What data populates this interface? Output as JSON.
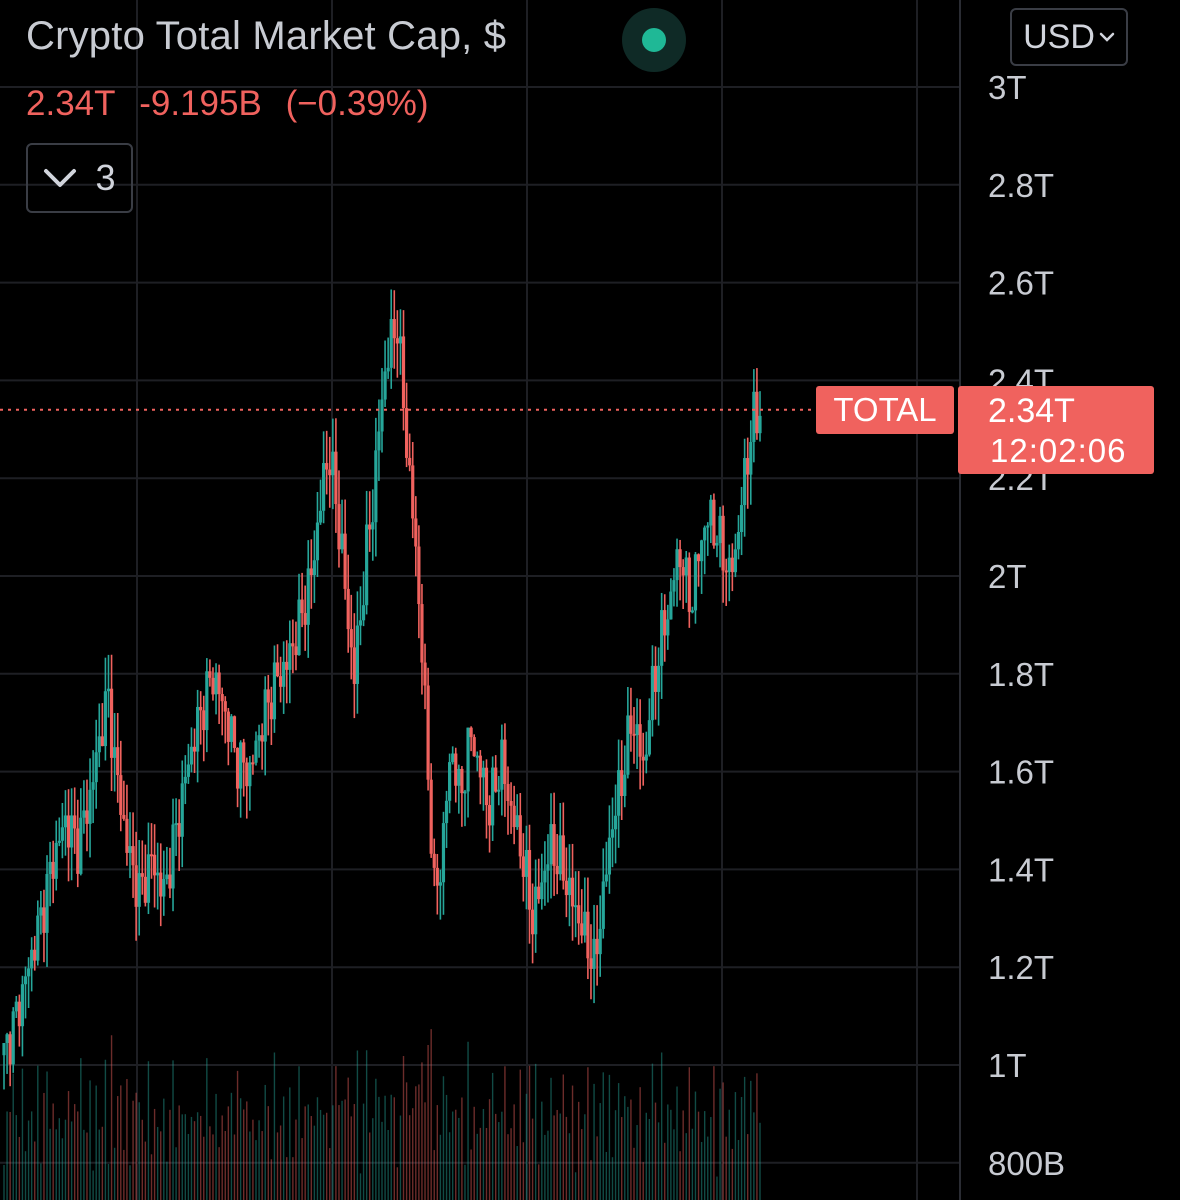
{
  "header": {
    "title": "Crypto Total Market Cap, $",
    "last_value": "2.34T",
    "change": "-9.195B",
    "change_pct": "(−0.39%)",
    "indicators_count": "3",
    "currency": "USD"
  },
  "price_tag": {
    "series_label": "TOTAL",
    "value": "2.34T",
    "countdown": "12:02:06"
  },
  "colors": {
    "up": "#26a69a",
    "down": "#f0625e",
    "grid": "#1e1f24",
    "axis_text": "#c8cbd2"
  },
  "icons": {
    "status": "status-dot-icon",
    "collapse": "chevron-down-icon",
    "currency_dropdown": "chevron-down-icon"
  },
  "chart_data": {
    "type": "candlestick",
    "series_name": "TOTAL",
    "y_scale": "linear",
    "ylim": [
      0.76,
      3.0
    ],
    "y_unit": "trillion USD",
    "y_ticks": [
      {
        "v": 3.0,
        "label": "3T"
      },
      {
        "v": 2.8,
        "label": "2.8T"
      },
      {
        "v": 2.6,
        "label": "2.6T"
      },
      {
        "v": 2.4,
        "label": "2.4T"
      },
      {
        "v": 2.2,
        "label": "2.2T"
      },
      {
        "v": 2.0,
        "label": "2T"
      },
      {
        "v": 1.8,
        "label": "1.8T"
      },
      {
        "v": 1.6,
        "label": "1.6T"
      },
      {
        "v": 1.4,
        "label": "1.4T"
      },
      {
        "v": 1.2,
        "label": "1.2T"
      },
      {
        "v": 1.0,
        "label": "1T"
      },
      {
        "v": 0.8,
        "label": "800B"
      }
    ],
    "last_price": 2.34,
    "grid": true,
    "price_path": [
      [
        0,
        1.02
      ],
      [
        4,
        1.1
      ],
      [
        8,
        1.2
      ],
      [
        12,
        1.3
      ],
      [
        16,
        1.42
      ],
      [
        20,
        1.5
      ],
      [
        24,
        1.45
      ],
      [
        28,
        1.55
      ],
      [
        32,
        1.7
      ],
      [
        34,
        1.75
      ],
      [
        36,
        1.62
      ],
      [
        40,
        1.45
      ],
      [
        44,
        1.35
      ],
      [
        48,
        1.42
      ],
      [
        52,
        1.35
      ],
      [
        56,
        1.48
      ],
      [
        60,
        1.62
      ],
      [
        64,
        1.72
      ],
      [
        68,
        1.8
      ],
      [
        72,
        1.72
      ],
      [
        76,
        1.62
      ],
      [
        80,
        1.6
      ],
      [
        84,
        1.7
      ],
      [
        88,
        1.78
      ],
      [
        92,
        1.82
      ],
      [
        96,
        1.9
      ],
      [
        100,
        2.0
      ],
      [
        104,
        2.2
      ],
      [
        106,
        2.25
      ],
      [
        108,
        2.15
      ],
      [
        110,
        2.05
      ],
      [
        112,
        1.9
      ],
      [
        114,
        1.8
      ],
      [
        116,
        1.92
      ],
      [
        118,
        2.05
      ],
      [
        120,
        2.15
      ],
      [
        122,
        2.3
      ],
      [
        124,
        2.42
      ],
      [
        126,
        2.48
      ],
      [
        128,
        2.52
      ],
      [
        130,
        2.35
      ],
      [
        132,
        2.2
      ],
      [
        134,
        2.05
      ],
      [
        136,
        1.85
      ],
      [
        138,
        1.6
      ],
      [
        140,
        1.35
      ],
      [
        142,
        1.4
      ],
      [
        144,
        1.55
      ],
      [
        146,
        1.65
      ],
      [
        148,
        1.55
      ],
      [
        150,
        1.6
      ],
      [
        152,
        1.68
      ],
      [
        154,
        1.62
      ],
      [
        156,
        1.58
      ],
      [
        158,
        1.52
      ],
      [
        160,
        1.58
      ],
      [
        162,
        1.62
      ],
      [
        164,
        1.55
      ],
      [
        166,
        1.5
      ],
      [
        168,
        1.45
      ],
      [
        170,
        1.38
      ],
      [
        172,
        1.3
      ],
      [
        174,
        1.35
      ],
      [
        176,
        1.4
      ],
      [
        178,
        1.45
      ],
      [
        180,
        1.42
      ],
      [
        182,
        1.4
      ],
      [
        184,
        1.35
      ],
      [
        186,
        1.32
      ],
      [
        188,
        1.28
      ],
      [
        190,
        1.25
      ],
      [
        192,
        1.2
      ],
      [
        194,
        1.3
      ],
      [
        196,
        1.4
      ],
      [
        198,
        1.5
      ],
      [
        200,
        1.55
      ],
      [
        202,
        1.62
      ],
      [
        204,
        1.7
      ],
      [
        206,
        1.68
      ],
      [
        208,
        1.6
      ],
      [
        210,
        1.72
      ],
      [
        212,
        1.8
      ],
      [
        214,
        1.88
      ],
      [
        216,
        1.92
      ],
      [
        218,
        2.0
      ],
      [
        220,
        2.05
      ],
      [
        222,
        1.98
      ],
      [
        224,
        1.95
      ],
      [
        226,
        2.05
      ],
      [
        228,
        2.1
      ],
      [
        230,
        2.12
      ],
      [
        232,
        2.08
      ],
      [
        234,
        2.05
      ],
      [
        236,
        2.0
      ],
      [
        238,
        2.05
      ],
      [
        240,
        2.15
      ],
      [
        242,
        2.25
      ],
      [
        244,
        2.32
      ],
      [
        246,
        2.34
      ]
    ]
  }
}
